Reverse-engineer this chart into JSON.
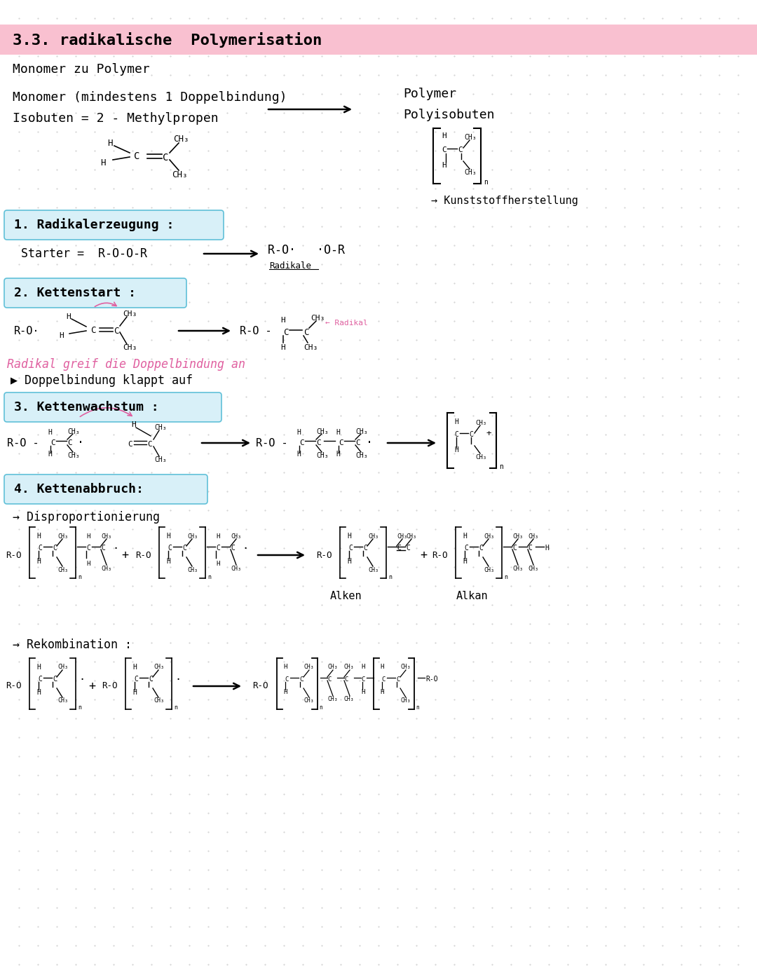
{
  "bg_color": "#ffffff",
  "dot_color": "#cccccc",
  "title": "3.3. radikalische  Polymerisation",
  "title_bg": "#f9c0d0",
  "monomer_zu_polymer": "Monomer zu Polymer",
  "monomer_header": "Monomer (mindestens 1 Doppelbindung)",
  "isobuten": "Isobuten = 2 - Methylpropen",
  "polymer_label": "Polymer",
  "polyisobuten": "Polyisobuten",
  "kunststoff": "→ Kunststoffherstellung",
  "section1": "1. Radikalerzeugung :",
  "starter": "Starter =  R-O-O-R",
  "radikale_label": "Radikale",
  "starter_product": "R-O·   ·O-R",
  "section2": "2. Kettenstart :",
  "radikal_greif": "Radikal greif die Doppelbindung an",
  "doppel_klappt": "▶ Doppelbindung klappt auf",
  "section3": "3. Kettenwachstum :",
  "section4": "4. Kettenabbruch:",
  "disproportionierung": "→ Disproportionierung",
  "rekombination": "→ Rekombination :",
  "alken_label": "Alken",
  "alkan_label": "Alkan",
  "pink_color": "#e060a0",
  "section_bg": "#d8f0f8",
  "section_edge": "#60c0d8"
}
